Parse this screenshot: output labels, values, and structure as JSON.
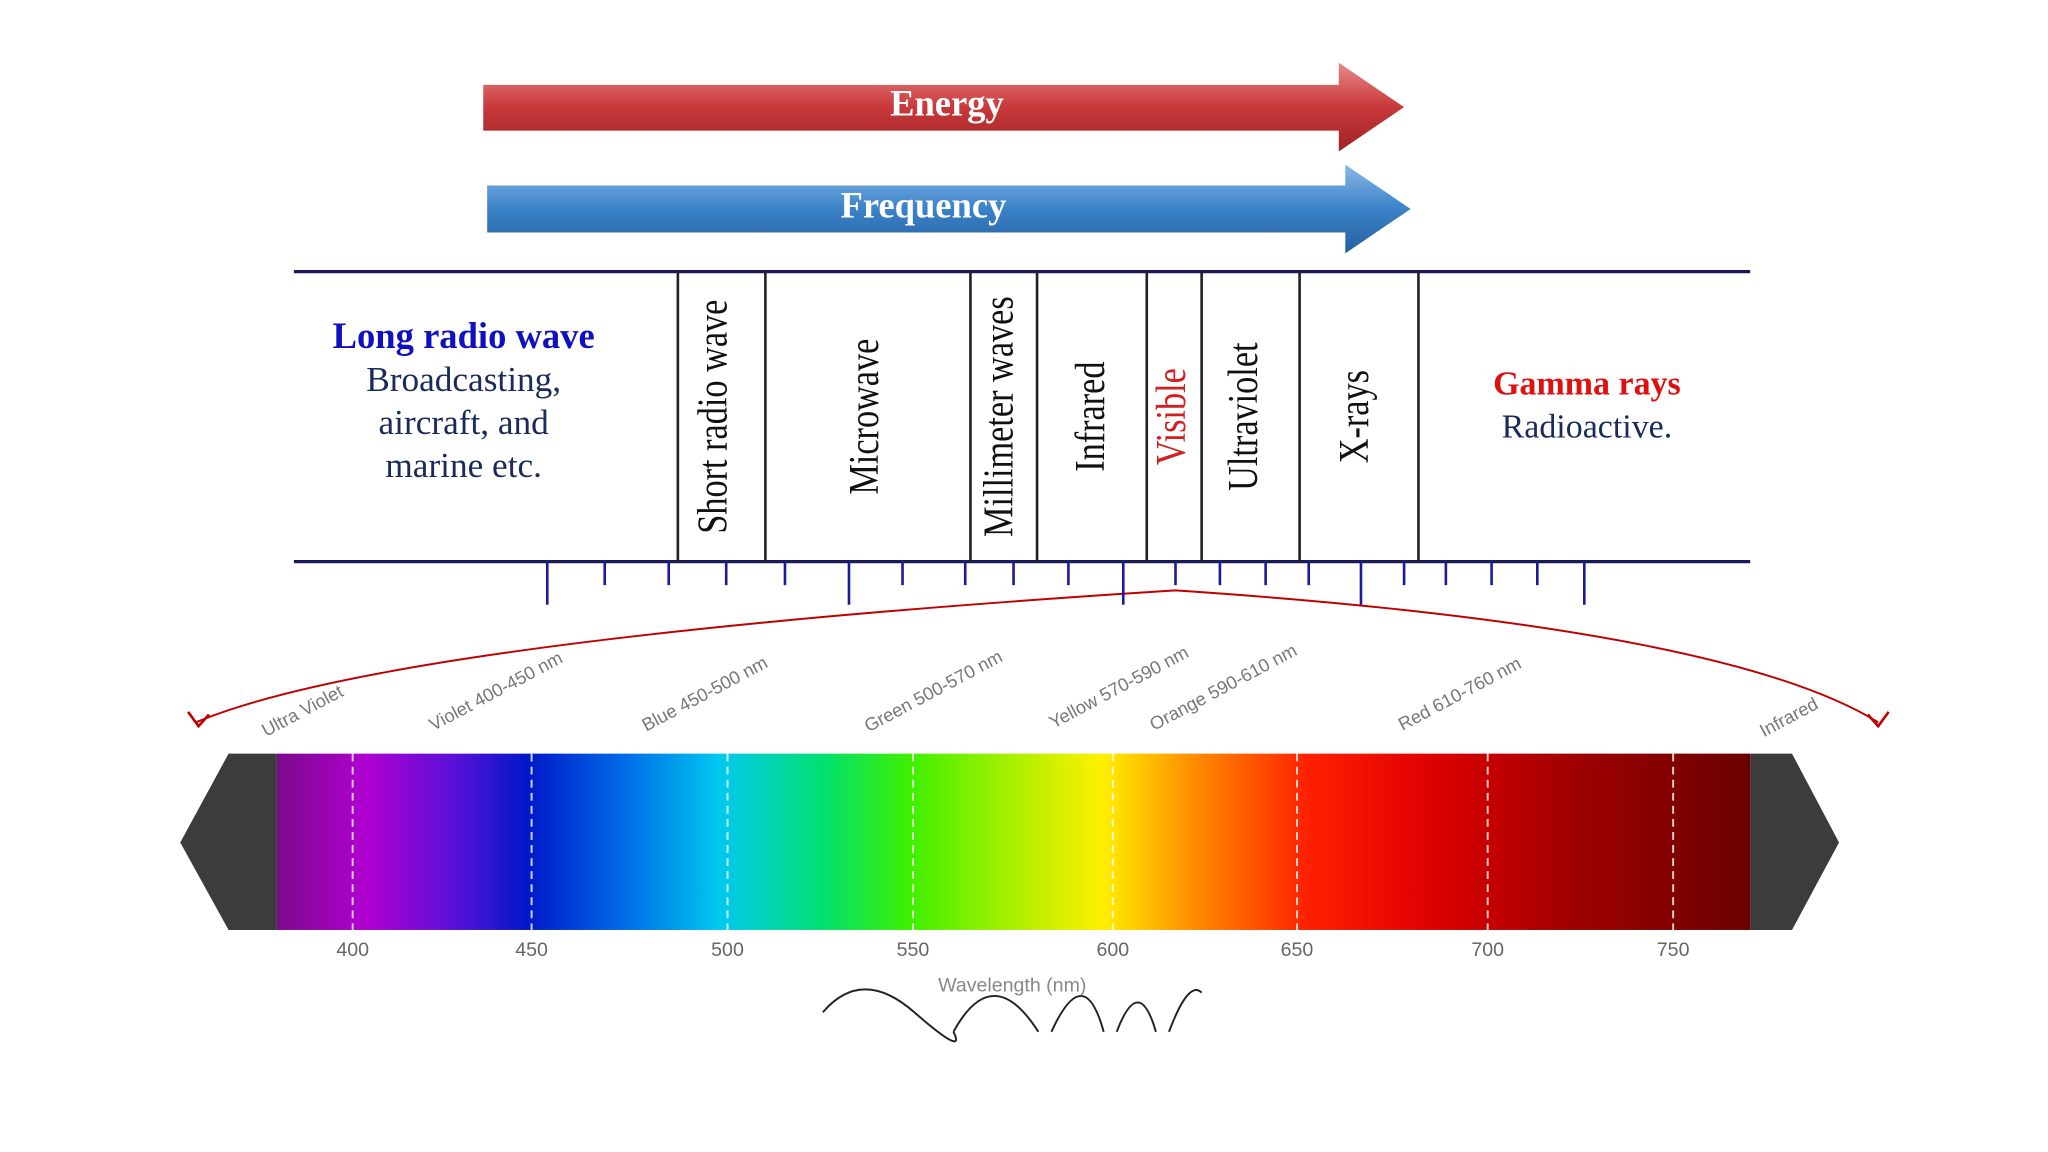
{
  "arrows": {
    "energy": "Energy",
    "frequency": "Frequency"
  },
  "left": {
    "title": "Long radio wave",
    "lines": [
      "Broadcasting,",
      "aircraft, and",
      "marine etc."
    ]
  },
  "right": {
    "title": "Gamma rays",
    "lines": [
      "Radioactive."
    ]
  },
  "bands": [
    "Short radio wave",
    "Microwave",
    "Millimeter waves",
    "Infrared",
    "Visible",
    "Ultraviolet",
    "X-rays"
  ],
  "spectrum": {
    "labels": [
      "Ultra Violet",
      "Violet 400-450 nm",
      "Blue 450-500 nm",
      "Green 500-570 nm",
      "Yellow 570-590 nm",
      "Orange 590-610 nm",
      "Red 610-760 nm",
      "Infrared"
    ],
    "ticks": [
      "400",
      "450",
      "500",
      "550",
      "600",
      "650",
      "700",
      "750"
    ],
    "axis_label": "Wavelength (nm)"
  }
}
